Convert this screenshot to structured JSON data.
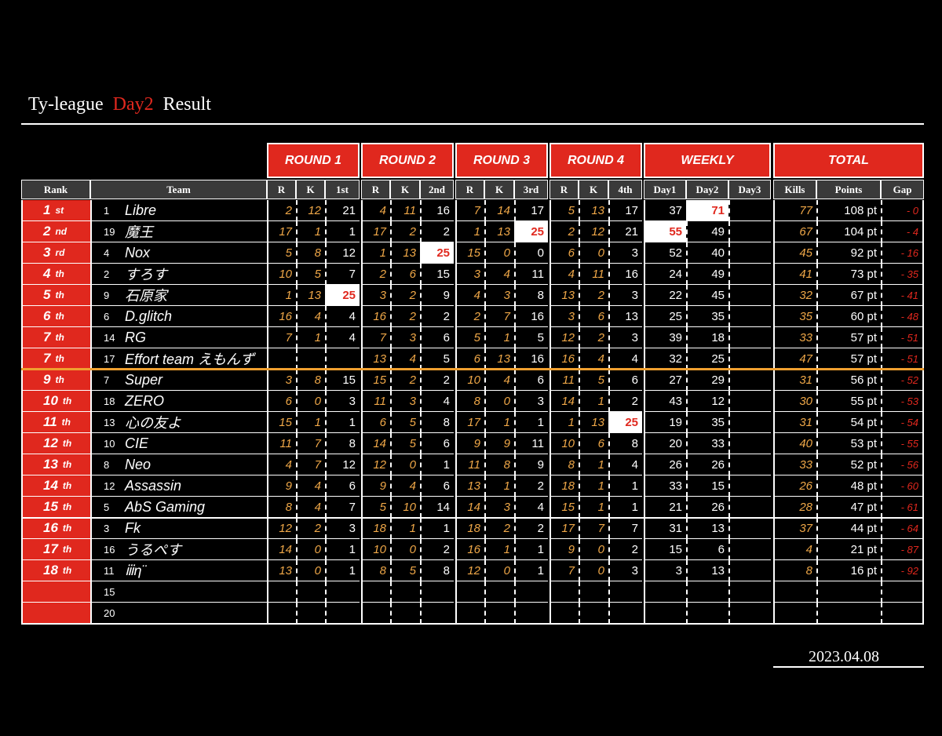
{
  "header": {
    "title_prefix": "Ty-league",
    "title_day": "Day2",
    "title_suffix": "Result"
  },
  "date": "2023.04.08",
  "table": {
    "groups": [
      "ROUND 1",
      "ROUND 2",
      "ROUND 3",
      "ROUND 4",
      "WEEKLY",
      "TOTAL"
    ],
    "columns": [
      "Rank",
      "Team",
      "R",
      "K",
      "1st",
      "R",
      "K",
      "2nd",
      "R",
      "K",
      "3rd",
      "R",
      "K",
      "4th",
      "Day1",
      "Day2",
      "Day3",
      "Kills",
      "Points",
      "Gap"
    ],
    "rows": [
      {
        "rank": "1",
        "suffix": "st",
        "no": "1",
        "team": "Libre",
        "cells": [
          2,
          12,
          21,
          4,
          11,
          16,
          7,
          14,
          17,
          5,
          13,
          17,
          37,
          71,
          null,
          77,
          "108 pt",
          "- 0"
        ],
        "highlight": [
          13
        ]
      },
      {
        "rank": "2",
        "suffix": "nd",
        "no": "19",
        "team": "魔王",
        "cells": [
          17,
          1,
          1,
          17,
          2,
          2,
          1,
          13,
          25,
          2,
          12,
          21,
          55,
          49,
          null,
          67,
          "104 pt",
          "- 4"
        ],
        "highlight": [
          8,
          12
        ]
      },
      {
        "rank": "3",
        "suffix": "rd",
        "no": "4",
        "team": "Nox",
        "cells": [
          5,
          8,
          12,
          1,
          13,
          25,
          15,
          0,
          0,
          6,
          0,
          3,
          52,
          40,
          null,
          45,
          "92 pt",
          "- 16"
        ],
        "highlight": [
          5
        ]
      },
      {
        "rank": "4",
        "suffix": "th",
        "no": "2",
        "team": "すろす",
        "cells": [
          10,
          5,
          7,
          2,
          6,
          15,
          3,
          4,
          11,
          4,
          11,
          16,
          24,
          49,
          null,
          41,
          "73 pt",
          "- 35"
        ],
        "highlight": []
      },
      {
        "rank": "5",
        "suffix": "th",
        "no": "9",
        "team": "石原家",
        "cells": [
          1,
          13,
          25,
          3,
          2,
          9,
          4,
          3,
          8,
          13,
          2,
          3,
          22,
          45,
          null,
          32,
          "67 pt",
          "- 41"
        ],
        "highlight": [
          2
        ]
      },
      {
        "rank": "6",
        "suffix": "th",
        "no": "6",
        "team": "D.glitch",
        "cells": [
          16,
          4,
          4,
          16,
          2,
          2,
          2,
          7,
          16,
          3,
          6,
          13,
          25,
          35,
          null,
          35,
          "60 pt",
          "- 48"
        ],
        "highlight": []
      },
      {
        "rank": "7",
        "suffix": "th",
        "no": "14",
        "team": "RG",
        "cells": [
          7,
          1,
          4,
          7,
          3,
          6,
          5,
          1,
          5,
          12,
          2,
          3,
          39,
          18,
          null,
          33,
          "57 pt",
          "- 51"
        ],
        "highlight": []
      },
      {
        "rank": "7",
        "suffix": "th",
        "no": "17",
        "team": "Effort team えもんず",
        "cells": [
          null,
          null,
          null,
          13,
          4,
          5,
          6,
          13,
          16,
          16,
          4,
          4,
          32,
          25,
          null,
          47,
          "57 pt",
          "- 51"
        ],
        "highlight": []
      },
      {
        "rank": "9",
        "suffix": "th",
        "no": "7",
        "team": "Super",
        "cells": [
          3,
          8,
          15,
          15,
          2,
          2,
          10,
          4,
          6,
          11,
          5,
          6,
          27,
          29,
          null,
          31,
          "56 pt",
          "- 52"
        ],
        "highlight": []
      },
      {
        "rank": "10",
        "suffix": "th",
        "no": "18",
        "team": "ZERO",
        "cells": [
          6,
          0,
          3,
          11,
          3,
          4,
          8,
          0,
          3,
          14,
          1,
          2,
          43,
          12,
          null,
          30,
          "55 pt",
          "- 53"
        ],
        "highlight": []
      },
      {
        "rank": "11",
        "suffix": "th",
        "no": "13",
        "team": "心の友よ",
        "cells": [
          15,
          1,
          1,
          6,
          5,
          8,
          17,
          1,
          1,
          1,
          13,
          25,
          19,
          35,
          null,
          31,
          "54 pt",
          "- 54"
        ],
        "highlight": [
          11
        ]
      },
      {
        "rank": "12",
        "suffix": "th",
        "no": "10",
        "team": "CIE",
        "cells": [
          11,
          7,
          8,
          14,
          5,
          6,
          9,
          9,
          11,
          10,
          6,
          8,
          20,
          33,
          null,
          40,
          "53 pt",
          "- 55"
        ],
        "highlight": []
      },
      {
        "rank": "13",
        "suffix": "th",
        "no": "8",
        "team": "Neo",
        "cells": [
          4,
          7,
          12,
          12,
          0,
          1,
          11,
          8,
          9,
          8,
          1,
          4,
          26,
          26,
          null,
          33,
          "52 pt",
          "- 56"
        ],
        "highlight": []
      },
      {
        "rank": "14",
        "suffix": "th",
        "no": "12",
        "team": "Assassin",
        "cells": [
          9,
          4,
          6,
          9,
          4,
          6,
          13,
          1,
          2,
          18,
          1,
          1,
          33,
          15,
          null,
          26,
          "48 pt",
          "- 60"
        ],
        "highlight": []
      },
      {
        "rank": "15",
        "suffix": "th",
        "no": "5",
        "team": "AbS Gaming",
        "cells": [
          8,
          4,
          7,
          5,
          10,
          14,
          14,
          3,
          4,
          15,
          1,
          1,
          21,
          26,
          null,
          28,
          "47 pt",
          "- 61"
        ],
        "highlight": []
      },
      {
        "rank": "16",
        "suffix": "th",
        "no": "3",
        "team": "Fk",
        "cells": [
          12,
          2,
          3,
          18,
          1,
          1,
          18,
          2,
          2,
          17,
          7,
          7,
          31,
          13,
          null,
          37,
          "44 pt",
          "- 64"
        ],
        "highlight": []
      },
      {
        "rank": "17",
        "suffix": "th",
        "no": "16",
        "team": "うるぺす",
        "cells": [
          14,
          0,
          1,
          10,
          0,
          2,
          16,
          1,
          1,
          9,
          0,
          2,
          15,
          6,
          null,
          4,
          "21 pt",
          "- 87"
        ],
        "highlight": []
      },
      {
        "rank": "18",
        "suffix": "th",
        "no": "11",
        "team": "ⅲη¨",
        "cells": [
          13,
          0,
          1,
          8,
          5,
          8,
          12,
          0,
          1,
          7,
          0,
          3,
          3,
          13,
          null,
          8,
          "16 pt",
          "- 92"
        ],
        "highlight": []
      },
      {
        "rank": null,
        "suffix": null,
        "no": "15",
        "team": null,
        "cells": [
          null,
          null,
          null,
          null,
          null,
          null,
          null,
          null,
          null,
          null,
          null,
          null,
          null,
          null,
          null,
          null,
          null,
          null
        ],
        "highlight": []
      },
      {
        "rank": null,
        "suffix": null,
        "no": "20",
        "team": null,
        "cells": [
          null,
          null,
          null,
          null,
          null,
          null,
          null,
          null,
          null,
          null,
          null,
          null,
          null,
          null,
          null,
          null,
          null,
          null
        ],
        "highlight": []
      }
    ]
  }
}
